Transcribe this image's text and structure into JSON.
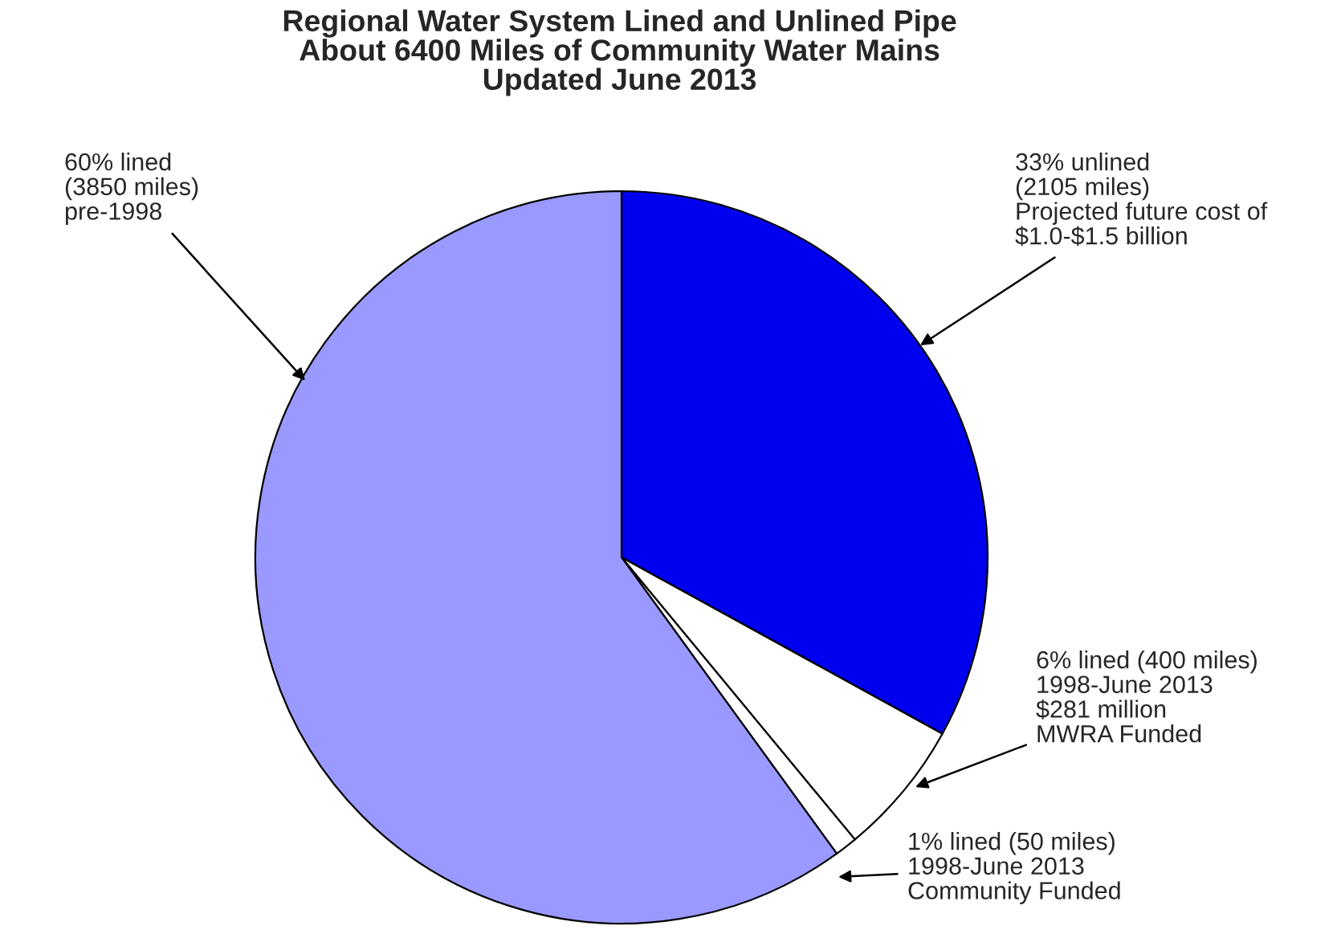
{
  "chart_data": {
    "type": "pie",
    "title": "Regional Water System Lined and Unlined Pipe\nAbout 6400 Miles of Community Water Mains\nUpdated June 2013",
    "categories": [
      "33% unlined\n(2105 miles)\nProjected future cost of\n$1.0-$1.5 billion",
      "6% lined (400 miles)\n1998-June 2013\n$281 million\nMWRA Funded",
      "1% lined (50 miles)\n1998-June 2013\nCommunity Funded",
      "60% lined\n(3850 miles)\npre-1998"
    ],
    "values": [
      33,
      6,
      1,
      60
    ],
    "colors": [
      "#0000ee",
      "#ffffff",
      "#ffffff",
      "#9999ff"
    ]
  }
}
